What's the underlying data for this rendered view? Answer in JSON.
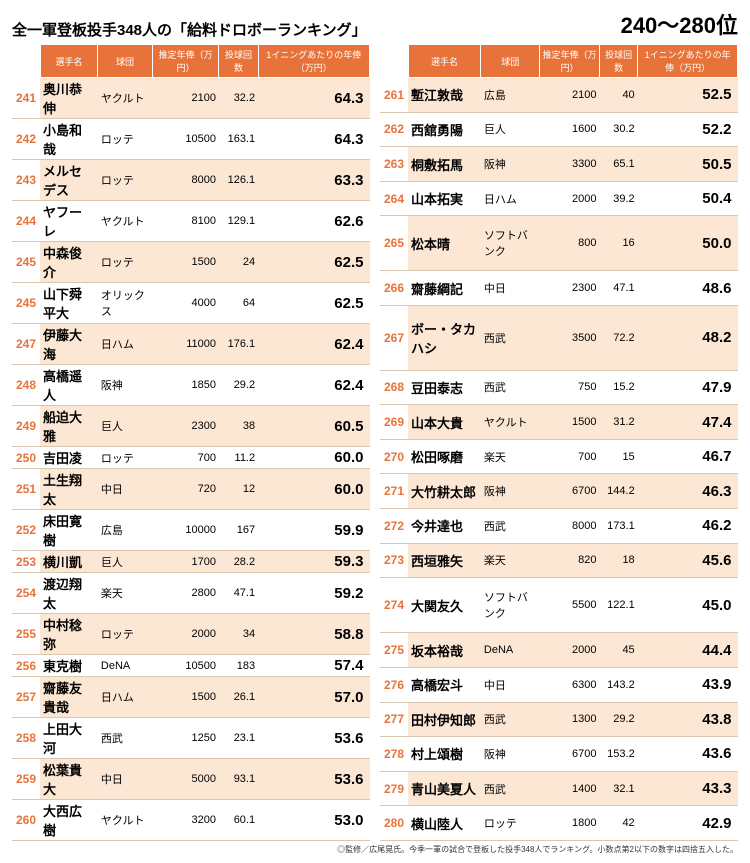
{
  "title": "全一軍登板投手348人の「給料ドロボーランキング」",
  "range": "240～280位",
  "columns": [
    "選手名",
    "球団",
    "推定年俸（万円）",
    "投球回数",
    "1イニングあたりの年俸（万円）"
  ],
  "left": [
    {
      "r": 241,
      "n": "奥川恭伸",
      "t": "ヤクルト",
      "s": "2100",
      "i": "32.2",
      "v": "64.3"
    },
    {
      "r": 242,
      "n": "小島和哉",
      "t": "ロッテ",
      "s": "10500",
      "i": "163.1",
      "v": "64.3"
    },
    {
      "r": 243,
      "n": "メルセデス",
      "t": "ロッテ",
      "s": "8000",
      "i": "126.1",
      "v": "63.3"
    },
    {
      "r": 244,
      "n": "ヤフーレ",
      "t": "ヤクルト",
      "s": "8100",
      "i": "129.1",
      "v": "62.6"
    },
    {
      "r": 245,
      "n": "中森俊介",
      "t": "ロッテ",
      "s": "1500",
      "i": "24",
      "v": "62.5"
    },
    {
      "r": 245,
      "n": "山下舜平大",
      "t": "オリックス",
      "s": "4000",
      "i": "64",
      "v": "62.5"
    },
    {
      "r": 247,
      "n": "伊藤大海",
      "t": "日ハム",
      "s": "11000",
      "i": "176.1",
      "v": "62.4"
    },
    {
      "r": 248,
      "n": "高橋遥人",
      "t": "阪神",
      "s": "1850",
      "i": "29.2",
      "v": "62.4"
    },
    {
      "r": 249,
      "n": "船迫大雅",
      "t": "巨人",
      "s": "2300",
      "i": "38",
      "v": "60.5"
    },
    {
      "r": 250,
      "n": "吉田凌",
      "t": "ロッテ",
      "s": "700",
      "i": "11.2",
      "v": "60.0"
    },
    {
      "r": 251,
      "n": "土生翔太",
      "t": "中日",
      "s": "720",
      "i": "12",
      "v": "60.0"
    },
    {
      "r": 252,
      "n": "床田寛樹",
      "t": "広島",
      "s": "10000",
      "i": "167",
      "v": "59.9"
    },
    {
      "r": 253,
      "n": "横川凱",
      "t": "巨人",
      "s": "1700",
      "i": "28.2",
      "v": "59.3"
    },
    {
      "r": 254,
      "n": "渡辺翔太",
      "t": "楽天",
      "s": "2800",
      "i": "47.1",
      "v": "59.2"
    },
    {
      "r": 255,
      "n": "中村稔弥",
      "t": "ロッテ",
      "s": "2000",
      "i": "34",
      "v": "58.8"
    },
    {
      "r": 256,
      "n": "東克樹",
      "t": "DeNA",
      "s": "10500",
      "i": "183",
      "v": "57.4"
    },
    {
      "r": 257,
      "n": "齋藤友貴哉",
      "t": "日ハム",
      "s": "1500",
      "i": "26.1",
      "v": "57.0"
    },
    {
      "r": 258,
      "n": "上田大河",
      "t": "西武",
      "s": "1250",
      "i": "23.1",
      "v": "53.6"
    },
    {
      "r": 259,
      "n": "松葉貴大",
      "t": "中日",
      "s": "5000",
      "i": "93.1",
      "v": "53.6"
    },
    {
      "r": 260,
      "n": "大西広樹",
      "t": "ヤクルト",
      "s": "3200",
      "i": "60.1",
      "v": "53.0"
    }
  ],
  "right": [
    {
      "r": 261,
      "n": "塹江敦哉",
      "t": "広島",
      "s": "2100",
      "i": "40",
      "v": "52.5"
    },
    {
      "r": 262,
      "n": "西舘勇陽",
      "t": "巨人",
      "s": "1600",
      "i": "30.2",
      "v": "52.2"
    },
    {
      "r": 263,
      "n": "桐敷拓馬",
      "t": "阪神",
      "s": "3300",
      "i": "65.1",
      "v": "50.5"
    },
    {
      "r": 264,
      "n": "山本拓実",
      "t": "日ハム",
      "s": "2000",
      "i": "39.2",
      "v": "50.4"
    },
    {
      "r": 265,
      "n": "松本晴",
      "t": "ソフトバンク",
      "s": "800",
      "i": "16",
      "v": "50.0"
    },
    {
      "r": 266,
      "n": "齋藤綱記",
      "t": "中日",
      "s": "2300",
      "i": "47.1",
      "v": "48.6"
    },
    {
      "r": 267,
      "n": "ボー・タカハシ",
      "t": "西武",
      "s": "3500",
      "i": "72.2",
      "v": "48.2"
    },
    {
      "r": 268,
      "n": "豆田泰志",
      "t": "西武",
      "s": "750",
      "i": "15.2",
      "v": "47.9"
    },
    {
      "r": 269,
      "n": "山本大貴",
      "t": "ヤクルト",
      "s": "1500",
      "i": "31.2",
      "v": "47.4"
    },
    {
      "r": 270,
      "n": "松田啄磨",
      "t": "楽天",
      "s": "700",
      "i": "15",
      "v": "46.7"
    },
    {
      "r": 271,
      "n": "大竹耕太郎",
      "t": "阪神",
      "s": "6700",
      "i": "144.2",
      "v": "46.3"
    },
    {
      "r": 272,
      "n": "今井達也",
      "t": "西武",
      "s": "8000",
      "i": "173.1",
      "v": "46.2"
    },
    {
      "r": 273,
      "n": "西垣雅矢",
      "t": "楽天",
      "s": "820",
      "i": "18",
      "v": "45.6"
    },
    {
      "r": 274,
      "n": "大関友久",
      "t": "ソフトバンク",
      "s": "5500",
      "i": "122.1",
      "v": "45.0"
    },
    {
      "r": 275,
      "n": "坂本裕哉",
      "t": "DeNA",
      "s": "2000",
      "i": "45",
      "v": "44.4"
    },
    {
      "r": 276,
      "n": "高橋宏斗",
      "t": "中日",
      "s": "6300",
      "i": "143.2",
      "v": "43.9"
    },
    {
      "r": 277,
      "n": "田村伊知郎",
      "t": "西武",
      "s": "1300",
      "i": "29.2",
      "v": "43.8"
    },
    {
      "r": 278,
      "n": "村上頌樹",
      "t": "阪神",
      "s": "6700",
      "i": "153.2",
      "v": "43.6"
    },
    {
      "r": 279,
      "n": "青山美夏人",
      "t": "西武",
      "s": "1400",
      "i": "32.1",
      "v": "43.3"
    },
    {
      "r": 280,
      "n": "横山陸人",
      "t": "ロッテ",
      "s": "1800",
      "i": "42",
      "v": "42.9"
    }
  ],
  "footnote": "◎監修／広尾晃氏。今季一軍の試合で登板した投手348人でランキング。小数点第2以下の数字は四捨五入した。"
}
